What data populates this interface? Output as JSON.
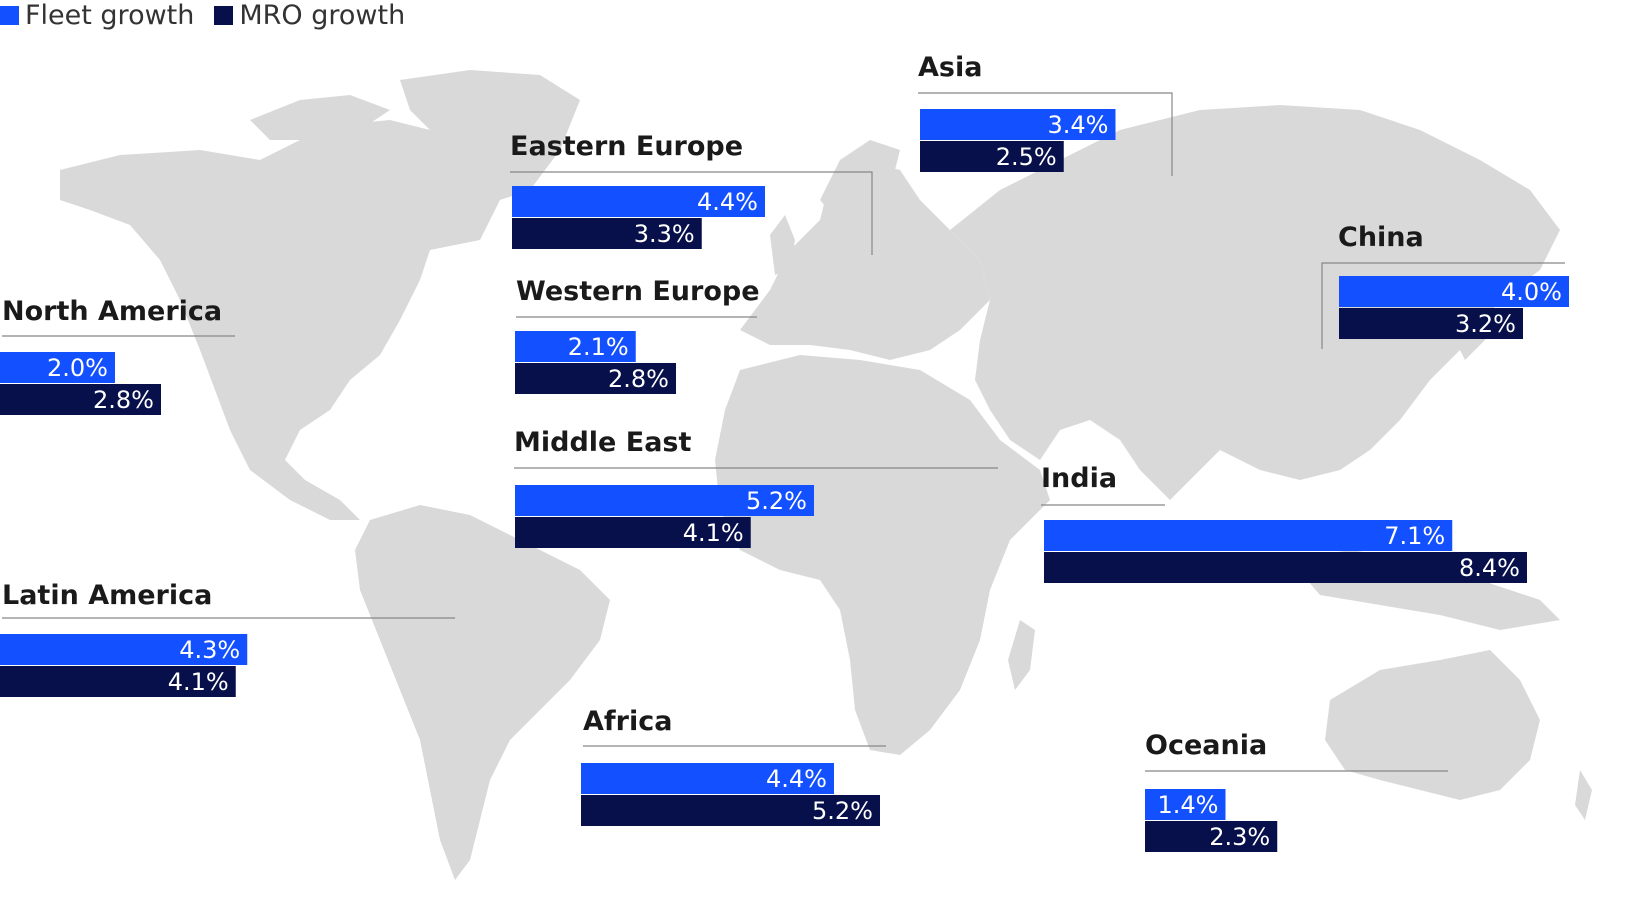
{
  "legend": [
    {
      "label": "Fleet growth",
      "color": "#1350ff"
    },
    {
      "label": "MRO growth",
      "color": "#07104a"
    }
  ],
  "chart_data": {
    "type": "bar",
    "value_unit": "%",
    "value_format": "percent_1dp",
    "scale_note": "horizontal paired bars per region, same scale for all",
    "series": [
      {
        "name": "Fleet growth",
        "color": "#1350ff"
      },
      {
        "name": "MRO growth",
        "color": "#07104a"
      }
    ],
    "regions": [
      {
        "name": "North America",
        "fleet": 2.0,
        "mro": 2.8
      },
      {
        "name": "Latin America",
        "fleet": 4.3,
        "mro": 4.1
      },
      {
        "name": "Eastern Europe",
        "fleet": 4.4,
        "mro": 3.3
      },
      {
        "name": "Western Europe",
        "fleet": 2.1,
        "mro": 2.8
      },
      {
        "name": "Middle East",
        "fleet": 5.2,
        "mro": 4.1
      },
      {
        "name": "Africa",
        "fleet": 4.4,
        "mro": 5.2
      },
      {
        "name": "Asia",
        "fleet": 3.4,
        "mro": 2.5
      },
      {
        "name": "China",
        "fleet": 4.0,
        "mro": 3.2
      },
      {
        "name": "India",
        "fleet": 7.1,
        "mro": 8.4
      },
      {
        "name": "Oceania",
        "fleet": 1.4,
        "mro": 2.3
      }
    ]
  },
  "colors": {
    "land": "#d9d9d9",
    "background": "#ffffff",
    "leader_line": "#888888",
    "title_text": "#1a1a1a"
  }
}
